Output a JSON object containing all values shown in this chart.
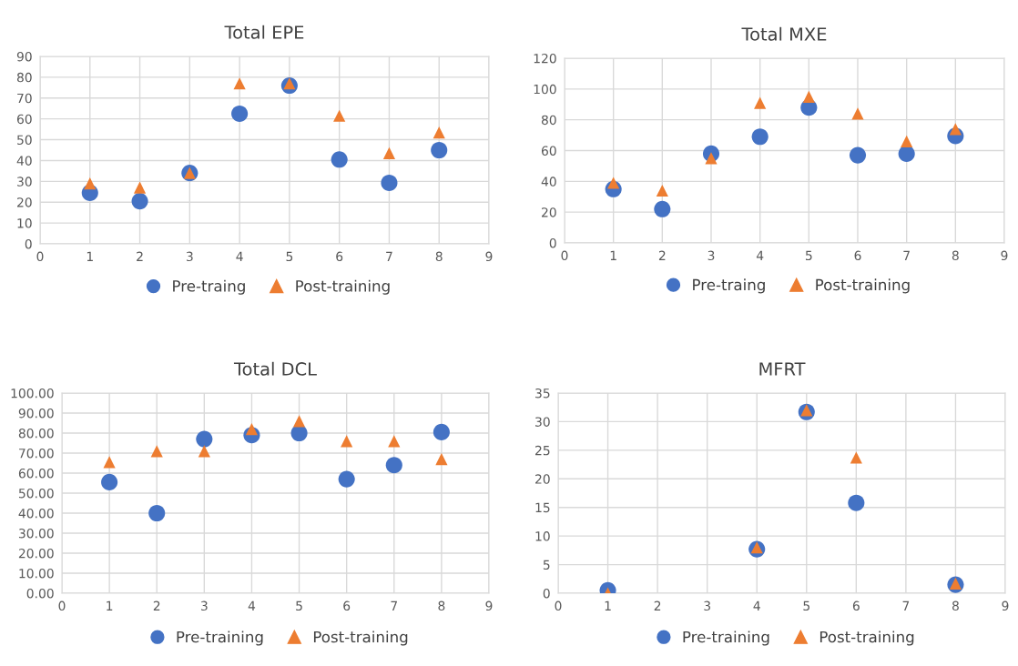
{
  "chart_data": [
    {
      "type": "scatter",
      "title": "Total EPE",
      "xlim": [
        0,
        9
      ],
      "xticks": [
        0,
        1,
        2,
        3,
        4,
        5,
        6,
        7,
        8,
        9
      ],
      "ylim": [
        0,
        90
      ],
      "yticks": [
        0,
        10,
        20,
        30,
        40,
        50,
        60,
        70,
        80,
        90
      ],
      "grid": true,
      "legend": "bottom",
      "x": [
        1,
        2,
        3,
        4,
        5,
        6,
        7,
        8
      ],
      "series": [
        {
          "name": "Pre-traing",
          "color": "#4472c4",
          "marker": "circle",
          "values": [
            24.5,
            20.5,
            34,
            62.5,
            76,
            40.5,
            29.3,
            45
          ]
        },
        {
          "name": "Post-training",
          "color": "#ed7d31",
          "marker": "triangle",
          "values": [
            29,
            27,
            34,
            77,
            77,
            61.5,
            43.5,
            53.5
          ]
        }
      ]
    },
    {
      "type": "scatter",
      "title": "Total MXE",
      "xlim": [
        0,
        9
      ],
      "xticks": [
        0,
        1,
        2,
        3,
        4,
        5,
        6,
        7,
        8,
        9
      ],
      "ylim": [
        0,
        120
      ],
      "yticks": [
        0,
        20,
        40,
        60,
        80,
        100,
        120
      ],
      "grid": true,
      "legend": "bottom",
      "x": [
        1,
        2,
        3,
        4,
        5,
        6,
        7,
        8
      ],
      "series": [
        {
          "name": "Pre-traing",
          "color": "#4472c4",
          "marker": "circle",
          "values": [
            35,
            22,
            58,
            69,
            88,
            57,
            58,
            69.5
          ]
        },
        {
          "name": "Post-training",
          "color": "#ed7d31",
          "marker": "triangle",
          "values": [
            39,
            34,
            55,
            91,
            95,
            84,
            66,
            74
          ]
        }
      ]
    },
    {
      "type": "scatter",
      "title": "Total DCL",
      "xlim": [
        0,
        9
      ],
      "xticks": [
        0,
        1,
        2,
        3,
        4,
        5,
        6,
        7,
        8,
        9
      ],
      "ylim": [
        0,
        100
      ],
      "yticks": [
        {
          "value": 0,
          "label": "0.00"
        },
        {
          "value": 10,
          "label": "10.00"
        },
        {
          "value": 20,
          "label": "20.00"
        },
        {
          "value": 30,
          "label": "30.00"
        },
        {
          "value": 40,
          "label": "40.00"
        },
        {
          "value": 50,
          "label": "50.00"
        },
        {
          "value": 60,
          "label": "60.00"
        },
        {
          "value": 70,
          "label": "70.00"
        },
        {
          "value": 80,
          "label": "80.00"
        },
        {
          "value": 90,
          "label": "90.00"
        },
        {
          "value": 100,
          "label": "100.00"
        }
      ],
      "grid": true,
      "legend": "bottom",
      "x": [
        1,
        2,
        3,
        4,
        5,
        6,
        7,
        8
      ],
      "series": [
        {
          "name": "Pre-training",
          "color": "#4472c4",
          "marker": "circle",
          "values": [
            55.5,
            40,
            77,
            79,
            80,
            57,
            64,
            80.5
          ]
        },
        {
          "name": "Post-training",
          "color": "#ed7d31",
          "marker": "triangle",
          "values": [
            65.5,
            71,
            71,
            82,
            86,
            76,
            76,
            67
          ]
        }
      ]
    },
    {
      "type": "scatter",
      "title": "MFRT",
      "xlim": [
        0,
        9
      ],
      "xticks": [
        0,
        1,
        2,
        3,
        4,
        5,
        6,
        7,
        8,
        9
      ],
      "ylim": [
        0,
        35
      ],
      "yticks": [
        0,
        5,
        10,
        15,
        20,
        25,
        30,
        35
      ],
      "grid": true,
      "legend": "bottom",
      "x": [
        1,
        4,
        5,
        6,
        8
      ],
      "series": [
        {
          "name": "Pre-training",
          "color": "#4472c4",
          "marker": "circle",
          "values": [
            0.5,
            7.7,
            31.7,
            15.8,
            1.5
          ]
        },
        {
          "name": "Post-training",
          "color": "#ed7d31",
          "marker": "triangle",
          "values": [
            0,
            8,
            32,
            23.7,
            1.7
          ]
        }
      ]
    }
  ]
}
